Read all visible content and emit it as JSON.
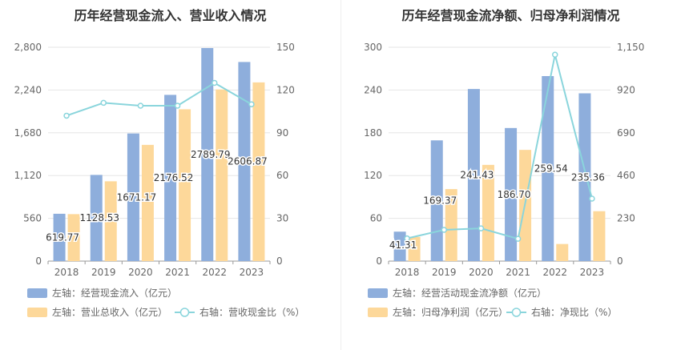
{
  "chart_data": [
    {
      "type": "bar",
      "title": "历年经营现金流入、营业收入情况",
      "categories": [
        "2018",
        "2019",
        "2020",
        "2021",
        "2022",
        "2023"
      ],
      "left_axis": {
        "ticks": [
          "0",
          "560",
          "1,120",
          "1,680",
          "2,240",
          "2,800"
        ],
        "range": [
          0,
          2800
        ]
      },
      "right_axis": {
        "ticks": [
          "0",
          "30",
          "60",
          "90",
          "120",
          "150"
        ],
        "range": [
          0,
          150
        ]
      },
      "series": [
        {
          "name": "左轴：经营现金流入（亿元）",
          "kind": "bar",
          "axis": "left",
          "color": "#8eaedc",
          "values": [
            619.77,
            1128.53,
            1671.17,
            2176.52,
            2789.79,
            2606.87
          ]
        },
        {
          "name": "左轴：营业总收入（亿元）",
          "kind": "bar",
          "axis": "left",
          "color": "#fdd89a",
          "values": [
            615,
            1045,
            1522,
            1988,
            2247,
            2340
          ]
        },
        {
          "name": "右轴：营收现金比（%）",
          "kind": "line",
          "axis": "right",
          "color": "#8ad5dc",
          "values": [
            102,
            111,
            109,
            109,
            125,
            110
          ]
        }
      ],
      "data_labels": [
        "619.77",
        "1128.53",
        "1671.17",
        "2176.52",
        "2789.79",
        "2606.87"
      ]
    },
    {
      "type": "bar",
      "title": "历年经营现金流净额、归母净利润情况",
      "categories": [
        "2018",
        "2019",
        "2020",
        "2021",
        "2022",
        "2023"
      ],
      "left_axis": {
        "ticks": [
          "0",
          "60",
          "120",
          "180",
          "240",
          "300"
        ],
        "range": [
          0,
          300
        ]
      },
      "right_axis": {
        "ticks": [
          "0",
          "230",
          "460",
          "690",
          "920",
          "1,150"
        ],
        "range": [
          0,
          1150
        ]
      },
      "series": [
        {
          "name": "左轴：经营活动现金流净额（亿元）",
          "kind": "bar",
          "axis": "left",
          "color": "#8eaedc",
          "values": [
            41.31,
            169.37,
            241.43,
            186.7,
            259.54,
            235.36
          ]
        },
        {
          "name": "左轴：归母净利润（亿元）",
          "kind": "bar",
          "axis": "left",
          "color": "#fdd89a",
          "values": [
            34,
            101,
            135,
            156,
            24,
            70
          ]
        },
        {
          "name": "右轴：净现比（%）",
          "kind": "line",
          "axis": "right",
          "color": "#8ad5dc",
          "values": [
            122,
            168,
            176,
            120,
            1110,
            336
          ]
        }
      ],
      "data_labels": [
        "41.31",
        "169.37",
        "241.43",
        "186.70",
        "259.54",
        "235.36"
      ]
    }
  ]
}
